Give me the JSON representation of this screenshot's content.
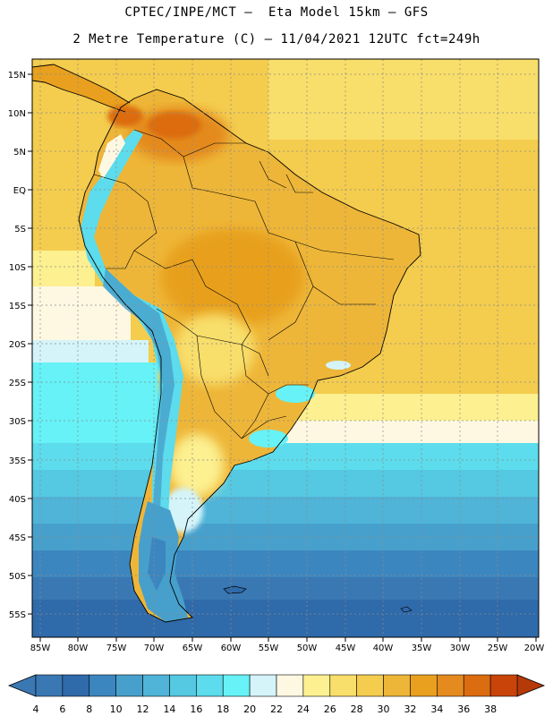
{
  "title": {
    "line1": "CPTEC/INPE/MCT –  Eta Model 15km – GFS",
    "line2": "2 Metre Temperature (C) – 11/04/2021 12UTC fct=249h"
  },
  "map": {
    "lat_labels": [
      "15N",
      "10N",
      "5N",
      "EQ",
      "5S",
      "10S",
      "15S",
      "20S",
      "25S",
      "30S",
      "35S",
      "40S",
      "45S",
      "50S",
      "55S"
    ],
    "lon_labels": [
      "85W",
      "80W",
      "75W",
      "70W",
      "65W",
      "60W",
      "55W",
      "50W",
      "45W",
      "40W",
      "35W",
      "30W",
      "25W",
      "20W"
    ],
    "extent": {
      "lon": [
        -86,
        -19.5
      ],
      "lat": [
        16.5,
        -57.5
      ]
    }
  },
  "colorbar": {
    "labels": [
      "4",
      "6",
      "8",
      "10",
      "12",
      "14",
      "16",
      "18",
      "20",
      "22",
      "24",
      "26",
      "28",
      "30",
      "32",
      "34",
      "36",
      "38"
    ],
    "colors": [
      "#3a78b4",
      "#2f6aaa",
      "#3c86c0",
      "#47a0cc",
      "#4fb4d8",
      "#55c8e2",
      "#5cdcec",
      "#66f2f6",
      "#d4f4fa",
      "#fef8e2",
      "#fcf090",
      "#f8de6a",
      "#f4cc4e",
      "#eeb638",
      "#e8a01e",
      "#e48a1e",
      "#dc6c10",
      "#c84408"
    ],
    "low_arrow_color": "#3a78b4",
    "high_arrow_color": "#b53a08"
  }
}
